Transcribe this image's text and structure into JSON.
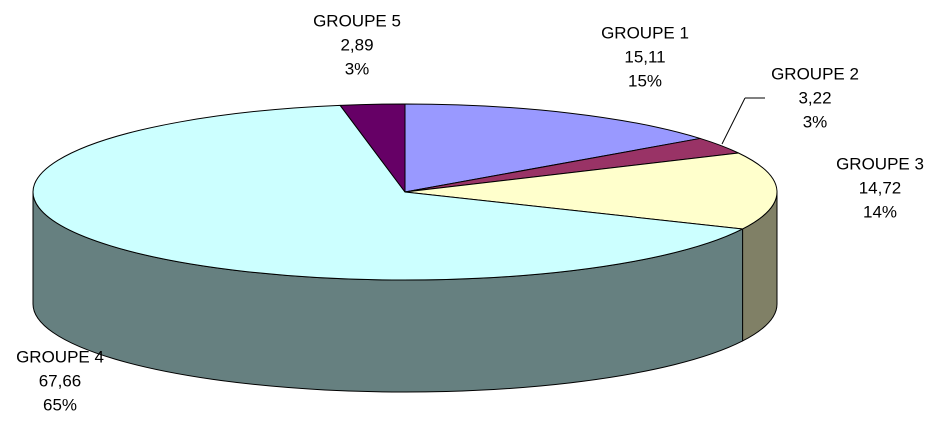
{
  "chart_data": {
    "type": "pie3d",
    "categories": [
      "GROUPE 1",
      "GROUPE 2",
      "GROUPE 3",
      "GROUPE 4",
      "GROUPE 5"
    ],
    "values": [
      15.11,
      3.22,
      14.72,
      67.66,
      2.89
    ],
    "value_labels": [
      "15,11",
      "3,22",
      "14,72",
      "67,66",
      "2,89"
    ],
    "percent_labels": [
      "15%",
      "3%",
      "14%",
      "65%",
      "3%"
    ],
    "colors": [
      "#9999ff",
      "#993366",
      "#ffffcc",
      "#ccffff",
      "#660066"
    ]
  }
}
